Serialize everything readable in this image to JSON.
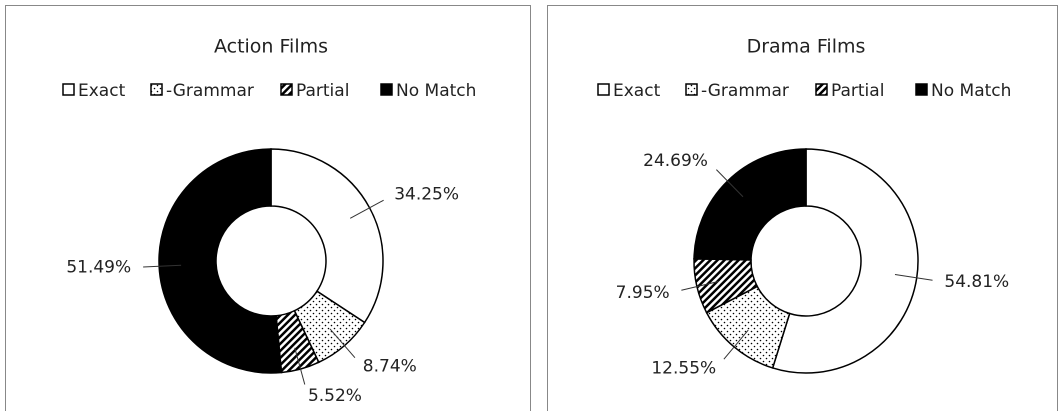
{
  "chart_data": [
    {
      "type": "donut",
      "title": "Action Films",
      "categories": [
        "Exact",
        "-Grammar",
        "Partial",
        "No Match"
      ],
      "values": [
        34.25,
        8.74,
        5.52,
        51.49
      ],
      "value_labels": [
        "34.25%",
        "8.74%",
        "5.52%",
        "51.49%"
      ],
      "fills": [
        "white",
        "dots",
        "stripes",
        "black"
      ],
      "legend": "top"
    },
    {
      "type": "donut",
      "title": "Drama Films",
      "categories": [
        "Exact",
        "-Grammar",
        "Partial",
        "No Match"
      ],
      "values": [
        54.81,
        12.55,
        7.95,
        24.69
      ],
      "value_labels": [
        "54.81%",
        "12.55%",
        "7.95%",
        "24.69%"
      ],
      "fills": [
        "white",
        "dots",
        "stripes",
        "black"
      ],
      "legend": "top"
    }
  ]
}
